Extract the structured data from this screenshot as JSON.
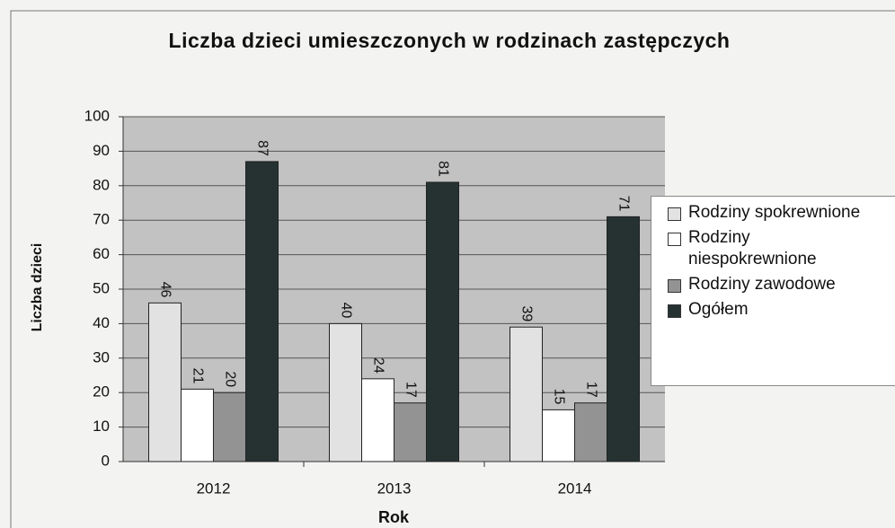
{
  "chart_data": {
    "type": "bar",
    "title": "Liczba dzieci umieszczonych w rodzinach zastępczych",
    "x_label": "Rok",
    "y_label": "Liczba dzieci",
    "categories": [
      "2012",
      "2013",
      "2014"
    ],
    "series": [
      {
        "name": "Rodziny spokrewnione",
        "color": "#e2e2e2",
        "values": [
          46,
          40,
          39
        ]
      },
      {
        "name": "Rodziny niespokrewnione",
        "color": "#ffffff",
        "values": [
          21,
          24,
          15
        ]
      },
      {
        "name": "Rodziny zawodowe",
        "color": "#939393",
        "values": [
          20,
          17,
          17
        ]
      },
      {
        "name": "Ogółem",
        "color": "#263232",
        "values": [
          87,
          81,
          71
        ]
      }
    ],
    "ylim": [
      0,
      100
    ],
    "yticks": [
      0,
      10,
      20,
      30,
      40,
      50,
      60,
      70,
      80,
      90,
      100
    ],
    "grid": true
  }
}
